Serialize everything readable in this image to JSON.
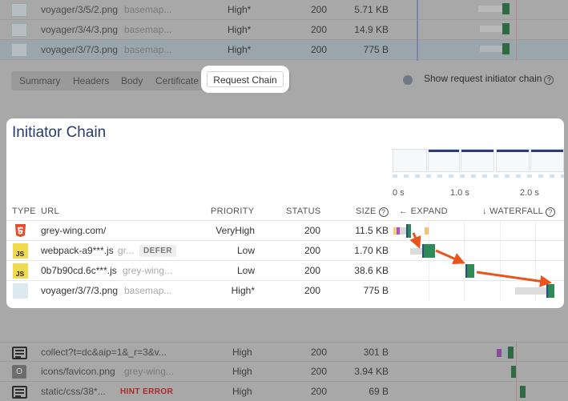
{
  "top_rows": [
    {
      "url": "voyager/3/5/2.png",
      "initiator": "basemap...",
      "priority": "High*",
      "status": "200",
      "size": "5.71 KB"
    },
    {
      "url": "voyager/3/4/3.png",
      "initiator": "basemap...",
      "priority": "High*",
      "status": "200",
      "size": "14.9 KB"
    },
    {
      "url": "voyager/3/7/3.png",
      "initiator": "basemap...",
      "priority": "High*",
      "status": "200",
      "size": "775 B"
    }
  ],
  "tabs": {
    "summary": "Summary",
    "headers": "Headers",
    "body": "Body",
    "certificate": "Certificate",
    "request_chain": "Request Chain"
  },
  "toggle": {
    "label": "Show request initiator chain"
  },
  "initiator_chain": {
    "title": "Initiator Chain",
    "timeline_labels": [
      "0 s",
      "1.0 s",
      "2.0 s"
    ],
    "headers": {
      "type": "TYPE",
      "url": "URL",
      "priority": "PRIORITY",
      "status": "STATUS",
      "size": "SIZE",
      "expand": "← EXPAND",
      "waterfall": "↓ WATERFALL"
    },
    "rows": [
      {
        "type_icon": "html5-icon",
        "url": "grey-wing.com/",
        "initiator": "",
        "tag": "",
        "priority": "VeryHigh",
        "status": "200",
        "size": "11.5 KB"
      },
      {
        "type_icon": "js-icon",
        "url": "webpack-a9***.js",
        "initiator": "gr...",
        "tag": "DEFER",
        "priority": "Low",
        "status": "200",
        "size": "1.70 KB"
      },
      {
        "type_icon": "js-icon",
        "url": "0b7b90cd.6c***.js",
        "initiator": "grey-wing...",
        "tag": "",
        "priority": "Low",
        "status": "200",
        "size": "38.6 KB"
      },
      {
        "type_icon": "image-icon",
        "url": "voyager/3/7/3.png",
        "initiator": "basemap...",
        "tag": "",
        "priority": "High*",
        "status": "200",
        "size": "775 B"
      }
    ]
  },
  "bottom_rows": [
    {
      "type_icon": "document-icon",
      "url": "collect?t=dc&aip=1&_r=3&v...",
      "initiator": "",
      "tag": "",
      "priority": "High",
      "status": "200",
      "size": "301 B"
    },
    {
      "type_icon": "other-icon",
      "type_letter": "O",
      "url": "icons/favicon.png",
      "initiator": "grey-wing...",
      "tag": "",
      "priority": "High",
      "status": "200",
      "size": "3.94 KB"
    },
    {
      "type_icon": "document-icon",
      "url": "static/css/38*...",
      "initiator": "",
      "tag": "HINT ERROR",
      "priority": "High",
      "status": "200",
      "size": "69 B"
    }
  ],
  "colors": {
    "accent_orange": "#e8541a",
    "waterfall_green": "#2e8b57",
    "title_navy": "#273c6b",
    "hint_error": "#d92b2b"
  }
}
